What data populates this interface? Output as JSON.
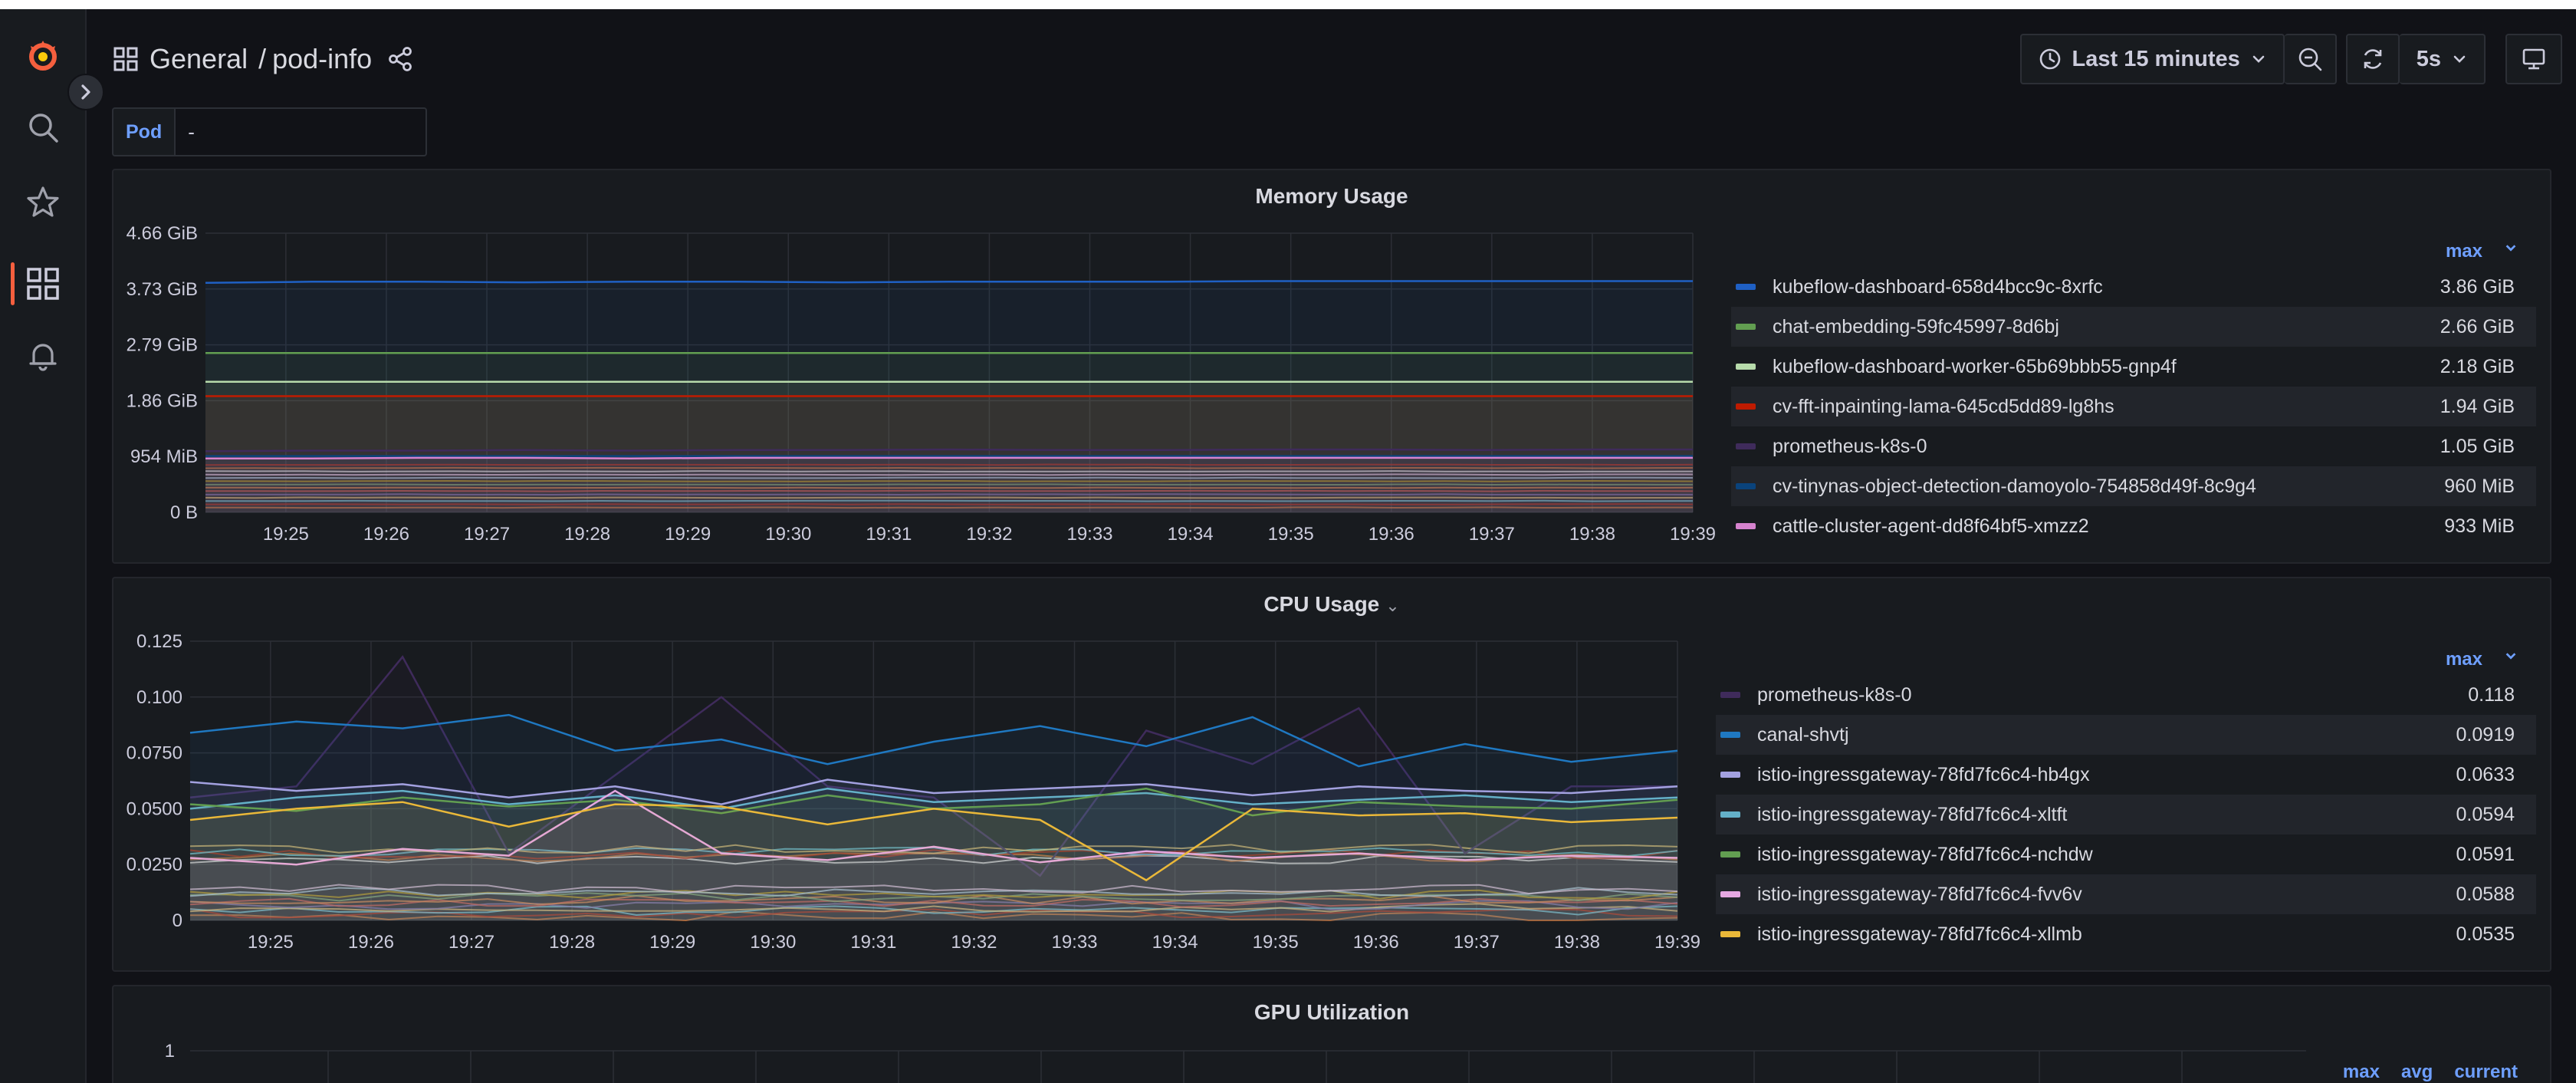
{
  "header": {
    "breadcrumb_folder": "General",
    "breadcrumb_separator": "/",
    "breadcrumb_dashboard": "pod-info",
    "time_range": "Last 15 minutes",
    "refresh_interval": "5s"
  },
  "variables": {
    "pod_label": "Pod",
    "pod_value": "-"
  },
  "colors": {
    "brand": "#f55f3e",
    "accent": "#6e9fff",
    "background": "#111217",
    "panel": "#181b1f"
  },
  "panels": {
    "memory": {
      "title": "Memory Usage",
      "legend_header": "max",
      "legend": [
        {
          "name": "kubeflow-dashboard-658d4bcc9c-8xrfc",
          "value": "3.86 GiB",
          "color": "#1f60c4"
        },
        {
          "name": "chat-embedding-59fc45997-8d6bj",
          "value": "2.66 GiB",
          "color": "#629e51"
        },
        {
          "name": "kubeflow-dashboard-worker-65b69bbb55-gnp4f",
          "value": "2.18 GiB",
          "color": "#b7dbab"
        },
        {
          "name": "cv-fft-inpainting-lama-645cd5dd89-lg8hs",
          "value": "1.94 GiB",
          "color": "#bf1b00"
        },
        {
          "name": "prometheus-k8s-0",
          "value": "1.05 GiB",
          "color": "#3f2b5b"
        },
        {
          "name": "cv-tinynas-object-detection-damoyolo-754858d49f-8c9g4",
          "value": "960 MiB",
          "color": "#0a437c"
        },
        {
          "name": "cattle-cluster-agent-dd8f64bf5-xmzz2",
          "value": "933 MiB",
          "color": "#d683ce"
        }
      ]
    },
    "cpu": {
      "title": "CPU Usage",
      "legend_header": "max",
      "legend": [
        {
          "name": "prometheus-k8s-0",
          "value": "0.118",
          "color": "#3f2b5b"
        },
        {
          "name": "canal-shvtj",
          "value": "0.0919",
          "color": "#1f78c1"
        },
        {
          "name": "istio-ingressgateway-78fd7fc6c4-hb4gx",
          "value": "0.0633",
          "color": "#a3a1e0"
        },
        {
          "name": "istio-ingressgateway-78fd7fc6c4-xltft",
          "value": "0.0594",
          "color": "#64b0c8"
        },
        {
          "name": "istio-ingressgateway-78fd7fc6c4-nchdw",
          "value": "0.0591",
          "color": "#629e51"
        },
        {
          "name": "istio-ingressgateway-78fd7fc6c4-fvv6v",
          "value": "0.0588",
          "color": "#e5a8e2"
        },
        {
          "name": "istio-ingressgateway-78fd7fc6c4-xllmb",
          "value": "0.0535",
          "color": "#eab839"
        }
      ]
    },
    "gpu": {
      "title": "GPU Utilization",
      "legend_headers": [
        "max",
        "avg",
        "current"
      ]
    }
  },
  "chart_data": [
    {
      "type": "area",
      "title": "Memory Usage",
      "x": [
        "19:25",
        "19:26",
        "19:27",
        "19:28",
        "19:29",
        "19:30",
        "19:31",
        "19:32",
        "19:33",
        "19:34",
        "19:35",
        "19:36",
        "19:37",
        "19:38",
        "19:39"
      ],
      "y_ticks": [
        "0 B",
        "954 MiB",
        "1.86 GiB",
        "2.79 GiB",
        "3.73 GiB",
        "4.66 GiB"
      ],
      "ylim": [
        0,
        4.66
      ],
      "yunit": "GiB",
      "series": [
        {
          "name": "kubeflow-dashboard-658d4bcc9c-8xrfc",
          "values": [
            3.83,
            3.85,
            3.85,
            3.84,
            3.85,
            3.85,
            3.84,
            3.85,
            3.85,
            3.85,
            3.86,
            3.86,
            3.86,
            3.86,
            3.86
          ]
        },
        {
          "name": "chat-embedding-59fc45997-8d6bj",
          "values": [
            2.66,
            2.66,
            2.66,
            2.66,
            2.66,
            2.66,
            2.66,
            2.66,
            2.66,
            2.66,
            2.66,
            2.66,
            2.66,
            2.66,
            2.66
          ]
        },
        {
          "name": "kubeflow-dashboard-worker-65b69bbb55-gnp4f",
          "values": [
            2.18,
            2.18,
            2.18,
            2.18,
            2.18,
            2.18,
            2.18,
            2.18,
            2.18,
            2.18,
            2.18,
            2.18,
            2.18,
            2.18,
            2.18
          ]
        },
        {
          "name": "cv-fft-inpainting-lama-645cd5dd89-lg8hs",
          "values": [
            1.94,
            1.94,
            1.94,
            1.94,
            1.94,
            1.94,
            1.94,
            1.94,
            1.94,
            1.94,
            1.94,
            1.94,
            1.94,
            1.94,
            1.94
          ]
        },
        {
          "name": "prometheus-k8s-0",
          "values": [
            1.02,
            1.03,
            1.03,
            1.04,
            1.03,
            1.04,
            1.04,
            1.05,
            1.04,
            1.04,
            1.05,
            1.05,
            1.04,
            1.05,
            1.05
          ]
        },
        {
          "name": "cv-tinynas-object-detection-damoyolo-754858d49f-8c9g4",
          "values": [
            0.94,
            0.94,
            0.94,
            0.94,
            0.94,
            0.94,
            0.94,
            0.94,
            0.94,
            0.94,
            0.94,
            0.94,
            0.94,
            0.94,
            0.94
          ]
        },
        {
          "name": "cattle-cluster-agent-dd8f64bf5-xmzz2",
          "values": [
            0.9,
            0.9,
            0.91,
            0.91,
            0.9,
            0.91,
            0.91,
            0.91,
            0.91,
            0.91,
            0.91,
            0.91,
            0.91,
            0.91,
            0.91
          ]
        }
      ]
    },
    {
      "type": "line",
      "title": "CPU Usage",
      "x": [
        "19:25",
        "19:26",
        "19:27",
        "19:28",
        "19:29",
        "19:30",
        "19:31",
        "19:32",
        "19:33",
        "19:34",
        "19:35",
        "19:36",
        "19:37",
        "19:38",
        "19:39"
      ],
      "y_ticks": [
        "0",
        "0.0250",
        "0.0500",
        "0.0750",
        "0.100",
        "0.125"
      ],
      "ylim": [
        0,
        0.125
      ],
      "series": [
        {
          "name": "prometheus-k8s-0",
          "values": [
            0.055,
            0.06,
            0.118,
            0.03,
            0.065,
            0.1,
            0.06,
            0.055,
            0.02,
            0.085,
            0.07,
            0.095,
            0.03,
            0.06,
            0.06
          ]
        },
        {
          "name": "canal-shvtj",
          "values": [
            0.084,
            0.089,
            0.086,
            0.092,
            0.076,
            0.081,
            0.07,
            0.08,
            0.087,
            0.078,
            0.091,
            0.069,
            0.079,
            0.071,
            0.076
          ]
        },
        {
          "name": "istio-ingressgateway-78fd7fc6c4-hb4gx",
          "values": [
            0.062,
            0.058,
            0.061,
            0.055,
            0.06,
            0.052,
            0.063,
            0.057,
            0.059,
            0.061,
            0.056,
            0.06,
            0.058,
            0.057,
            0.06
          ]
        },
        {
          "name": "istio-ingressgateway-78fd7fc6c4-xltft",
          "values": [
            0.05,
            0.055,
            0.058,
            0.052,
            0.056,
            0.05,
            0.059,
            0.053,
            0.055,
            0.057,
            0.052,
            0.054,
            0.056,
            0.053,
            0.055
          ]
        },
        {
          "name": "istio-ingressgateway-78fd7fc6c4-nchdw",
          "values": [
            0.052,
            0.049,
            0.055,
            0.051,
            0.054,
            0.048,
            0.056,
            0.05,
            0.052,
            0.059,
            0.047,
            0.053,
            0.051,
            0.05,
            0.054
          ]
        },
        {
          "name": "istio-ingressgateway-78fd7fc6c4-fvv6v",
          "values": [
            0.028,
            0.025,
            0.032,
            0.029,
            0.058,
            0.03,
            0.027,
            0.033,
            0.026,
            0.031,
            0.028,
            0.03,
            0.027,
            0.029,
            0.028
          ]
        },
        {
          "name": "istio-ingressgateway-78fd7fc6c4-xllmb",
          "values": [
            0.045,
            0.05,
            0.053,
            0.042,
            0.052,
            0.051,
            0.043,
            0.05,
            0.045,
            0.018,
            0.05,
            0.047,
            0.048,
            0.044,
            0.046
          ]
        }
      ]
    },
    {
      "type": "line",
      "title": "GPU Utilization",
      "y_ticks": [
        "1"
      ],
      "series": []
    }
  ]
}
